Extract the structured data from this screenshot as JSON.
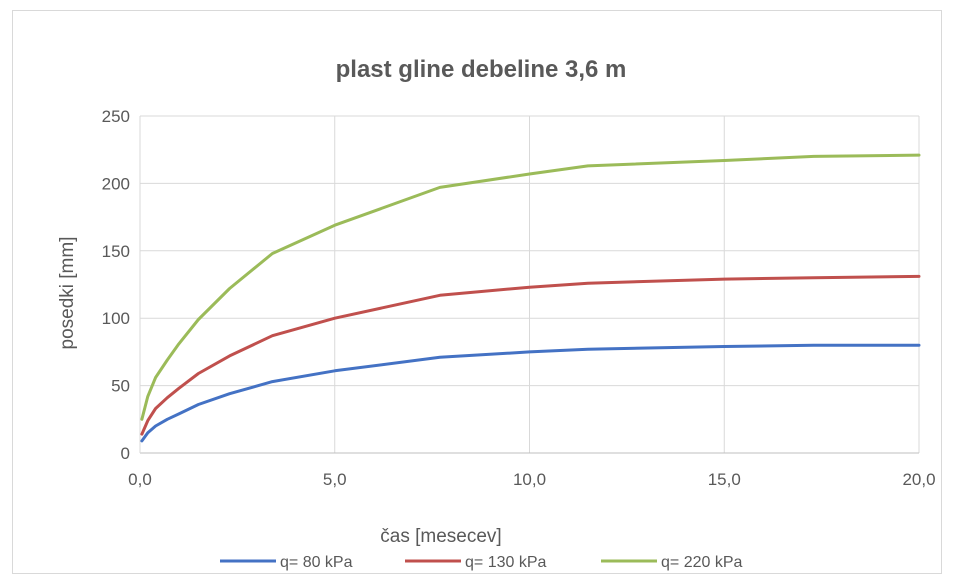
{
  "chart_data": {
    "type": "line",
    "title": "plast gline debeline 3,6 m",
    "xlabel": "čas [mesecev]",
    "ylabel": "posedki [mm]",
    "xlim": [
      0,
      20
    ],
    "ylim": [
      0,
      250
    ],
    "x_ticks": [
      0,
      5,
      10,
      15,
      20
    ],
    "x_tick_labels": [
      "0,0",
      "5,0",
      "10,0",
      "15,0",
      "20,0"
    ],
    "y_ticks": [
      0,
      50,
      100,
      150,
      200,
      250
    ],
    "y_tick_labels": [
      "0",
      "50",
      "100",
      "150",
      "200",
      "250"
    ],
    "grid": true,
    "legend_position": "bottom",
    "series": [
      {
        "name": "q= 80 kPa",
        "color": "#4472c4",
        "x": [
          0.05,
          0.2,
          0.4,
          0.7,
          1.0,
          1.5,
          2.3,
          3.4,
          5.0,
          7.7,
          10.0,
          11.5,
          15.0,
          17.3,
          20.0
        ],
        "y": [
          9,
          15,
          20,
          25,
          29,
          36,
          44,
          53,
          61,
          71,
          75,
          77,
          79,
          80,
          80
        ]
      },
      {
        "name": "q= 130 kPa",
        "color": "#c0504d",
        "x": [
          0.05,
          0.2,
          0.4,
          0.7,
          1.0,
          1.5,
          2.3,
          3.4,
          5.0,
          7.7,
          10.0,
          11.5,
          15.0,
          17.3,
          20.0
        ],
        "y": [
          14,
          24,
          33,
          41,
          48,
          59,
          72,
          87,
          100,
          117,
          123,
          126,
          129,
          130,
          131
        ]
      },
      {
        "name": "q= 220 kPa",
        "color": "#9bbb59",
        "x": [
          0.05,
          0.2,
          0.4,
          0.7,
          1.0,
          1.5,
          2.3,
          3.4,
          5.0,
          7.7,
          10.0,
          11.5,
          15.0,
          17.3,
          20.0
        ],
        "y": [
          25,
          42,
          56,
          69,
          81,
          99,
          122,
          148,
          169,
          197,
          207,
          213,
          217,
          220,
          221
        ]
      }
    ]
  }
}
